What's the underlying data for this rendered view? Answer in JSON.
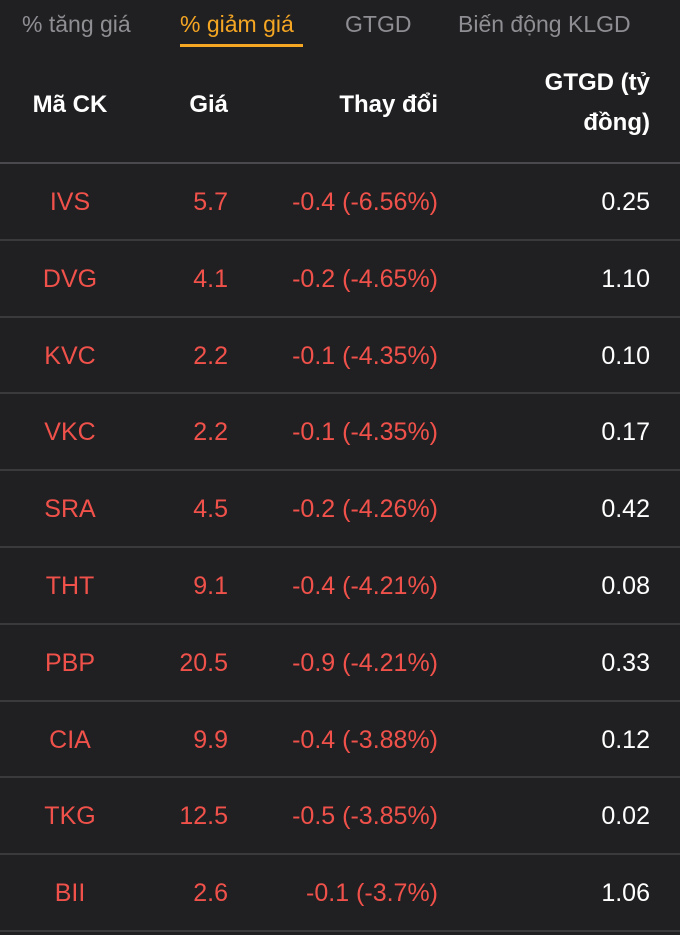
{
  "tabs": [
    {
      "label": "% tăng giá",
      "active": false
    },
    {
      "label": "% giảm giá",
      "active": true
    },
    {
      "label": "GTGD",
      "active": false
    },
    {
      "label": "Biến động KLGD",
      "active": false
    }
  ],
  "table": {
    "headers": {
      "symbol": "Mã CK",
      "price": "Giá",
      "change": "Thay đổi",
      "value_line1": "GTGD (tỷ",
      "value_line2": "đồng)"
    },
    "rows": [
      {
        "symbol": "IVS",
        "price": "5.7",
        "change": "-0.4 (-6.56%)",
        "value": "0.25"
      },
      {
        "symbol": "DVG",
        "price": "4.1",
        "change": "-0.2 (-4.65%)",
        "value": "1.10"
      },
      {
        "symbol": "KVC",
        "price": "2.2",
        "change": "-0.1 (-4.35%)",
        "value": "0.10"
      },
      {
        "symbol": "VKC",
        "price": "2.2",
        "change": "-0.1 (-4.35%)",
        "value": "0.17"
      },
      {
        "symbol": "SRA",
        "price": "4.5",
        "change": "-0.2 (-4.26%)",
        "value": "0.42"
      },
      {
        "symbol": "THT",
        "price": "9.1",
        "change": "-0.4 (-4.21%)",
        "value": "0.08"
      },
      {
        "symbol": "PBP",
        "price": "20.5",
        "change": "-0.9 (-4.21%)",
        "value": "0.33"
      },
      {
        "symbol": "CIA",
        "price": "9.9",
        "change": "-0.4 (-3.88%)",
        "value": "0.12"
      },
      {
        "symbol": "TKG",
        "price": "12.5",
        "change": "-0.5 (-3.85%)",
        "value": "0.02"
      },
      {
        "symbol": "BII",
        "price": "2.6",
        "change": "-0.1 (-3.7%)",
        "value": "1.06"
      }
    ]
  },
  "colors": {
    "background": "#202022",
    "accent": "#f5a623",
    "decrease": "#f0514a",
    "tab_inactive": "#8e8e93",
    "text": "#ffffff"
  }
}
